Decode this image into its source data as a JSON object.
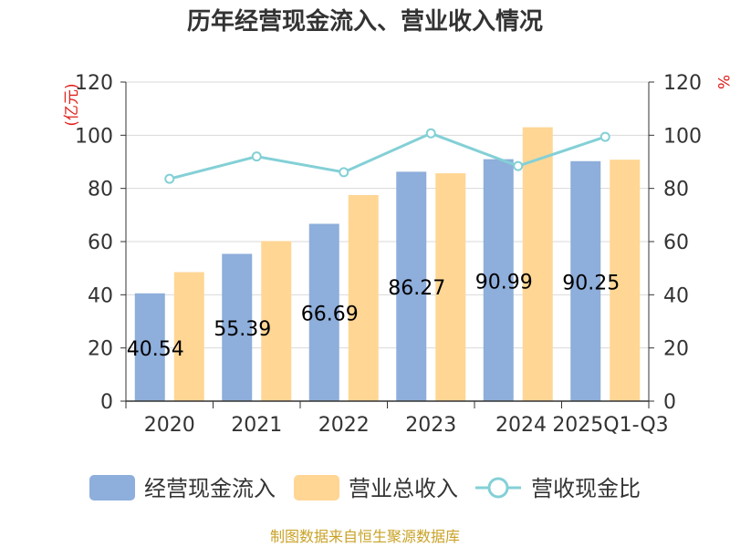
{
  "chart_data": {
    "type": "bar",
    "title": "历年经营现金流入、营业收入情况",
    "categories": [
      "2020",
      "2021",
      "2022",
      "2023",
      "2024",
      "2025Q1-Q3"
    ],
    "series": [
      {
        "name": "经营现金流入",
        "axis": "left",
        "color": "#8eaedb",
        "values": [
          40.54,
          55.39,
          66.69,
          86.27,
          90.99,
          90.25
        ]
      },
      {
        "name": "营业总收入",
        "axis": "left",
        "color": "#ffd694",
        "values": [
          48.5,
          60.2,
          77.5,
          85.7,
          103.0,
          90.8
        ]
      },
      {
        "name": "营收现金比",
        "type": "line",
        "axis": "right",
        "color": "#83d0d6",
        "values": [
          83.6,
          92.0,
          86.1,
          100.7,
          88.4,
          99.4
        ]
      }
    ],
    "data_labels": [
      "40.54",
      "55.39",
      "66.69",
      "86.27",
      "90.99",
      "90.25"
    ],
    "yleft": {
      "label": "(亿元)",
      "ylim": [
        0,
        120
      ],
      "ticks": [
        0,
        20,
        40,
        60,
        80,
        100,
        120
      ]
    },
    "yright": {
      "label": "%",
      "ylim": [
        0,
        120
      ],
      "ticks": [
        0,
        20,
        40,
        60,
        80,
        100,
        120
      ]
    },
    "legend_position": "bottom",
    "source": "制图数据来自恒生聚源数据库"
  }
}
